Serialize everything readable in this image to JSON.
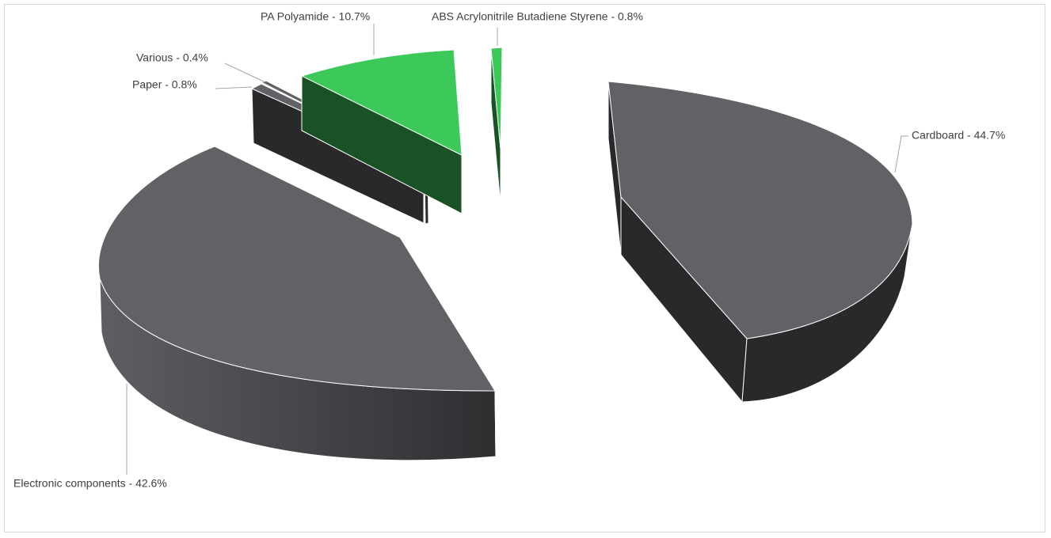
{
  "chart_data": {
    "type": "pie",
    "style": "3d-exploded",
    "title": "",
    "slices": [
      {
        "label": "Cardboard - 44.7%",
        "name": "Cardboard",
        "value": 44.7,
        "color": "#616166",
        "side_color": "#29292b"
      },
      {
        "label": "Electronic components - 42.6%",
        "name": "Electronic components",
        "value": 42.6,
        "color": "#616166",
        "side_color": "#3a3a3e"
      },
      {
        "label": "Paper - 0.8%",
        "name": "Paper",
        "value": 0.8,
        "color": "#616166",
        "side_color": "#29292b"
      },
      {
        "label": "Various - 0.4%",
        "name": "Various",
        "value": 0.4,
        "color": "#616166",
        "side_color": "#29292b"
      },
      {
        "label": "PA Polyamide - 10.7%",
        "name": "PA Polyamide",
        "value": 10.7,
        "color": "#3cc95a",
        "side_color": "#1a5225"
      },
      {
        "label": "ABS Acrylonitrile Butadiene Styrene - 0.8%",
        "name": "ABS Acrylonitrile Butadiene Styrene",
        "value": 0.8,
        "color": "#3cc95a",
        "side_color": "#1a5225"
      }
    ],
    "legend": "none",
    "data_labels": "outside-with-leader-lines"
  }
}
